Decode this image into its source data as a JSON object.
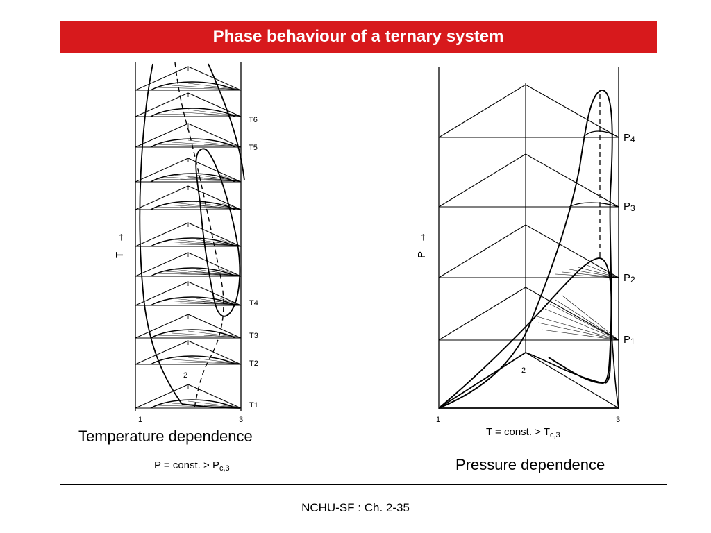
{
  "slide": {
    "title": "Phase behaviour of a ternary system",
    "footer": "NCHU-SF : Ch. 2-35"
  },
  "left_figure": {
    "axis_label": "T",
    "arrow": "→",
    "level_labels": [
      "T1",
      "T2",
      "T3",
      "T4",
      "T5",
      "T6"
    ],
    "corner_labels": [
      "1",
      "2",
      "3"
    ],
    "caption": "Temperature dependence",
    "condition": {
      "prefix": "P = const. > P",
      "subscript": "c,3"
    }
  },
  "right_figure": {
    "axis_label": "P",
    "arrow": "→",
    "level_labels": [
      {
        "letter": "P",
        "sub": "1"
      },
      {
        "letter": "P",
        "sub": "2"
      },
      {
        "letter": "P",
        "sub": "3"
      },
      {
        "letter": "P",
        "sub": "4"
      }
    ],
    "corner_labels": [
      "1",
      "2",
      "3"
    ],
    "caption": "Pressure dependence",
    "condition": {
      "prefix": "T = const. > T",
      "subscript": "c,3"
    }
  }
}
